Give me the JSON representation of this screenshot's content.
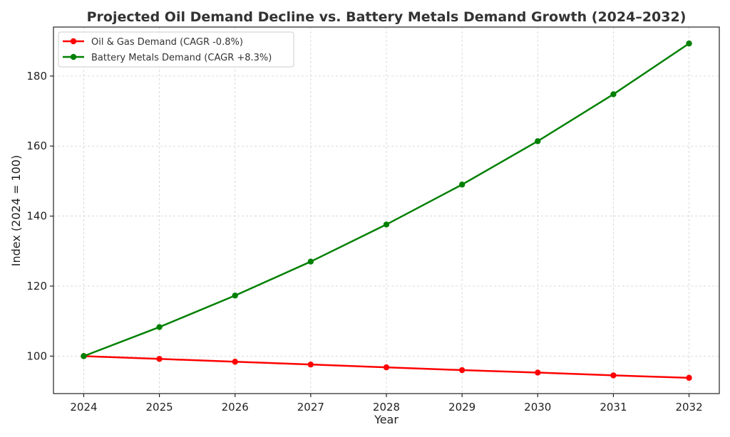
{
  "chart_data": {
    "type": "line",
    "title": "Projected Oil Demand Decline vs. Battery Metals Demand Growth (2024–2032)",
    "xlabel": "Year",
    "ylabel": "Index (2024 = 100)",
    "x": [
      2024,
      2025,
      2026,
      2027,
      2028,
      2029,
      2030,
      2031,
      2032
    ],
    "xlim": [
      2023.6,
      2032.4
    ],
    "ylim": [
      89.3,
      194.0
    ],
    "yticks": [
      100,
      120,
      140,
      160,
      180
    ],
    "grid": true,
    "legend_position": "upper-left",
    "series": [
      {
        "name": "Oil & Gas Demand (CAGR -0.8%)",
        "color": "#ff0000",
        "values": [
          100.0,
          99.2,
          98.4,
          97.6,
          96.8,
          96.0,
          95.3,
          94.5,
          93.8
        ]
      },
      {
        "name": "Battery Metals Demand (CAGR +8.3%)",
        "color": "#008000",
        "values": [
          100.0,
          108.3,
          117.3,
          127.0,
          137.6,
          149.0,
          161.4,
          174.8,
          189.3
        ]
      }
    ]
  }
}
